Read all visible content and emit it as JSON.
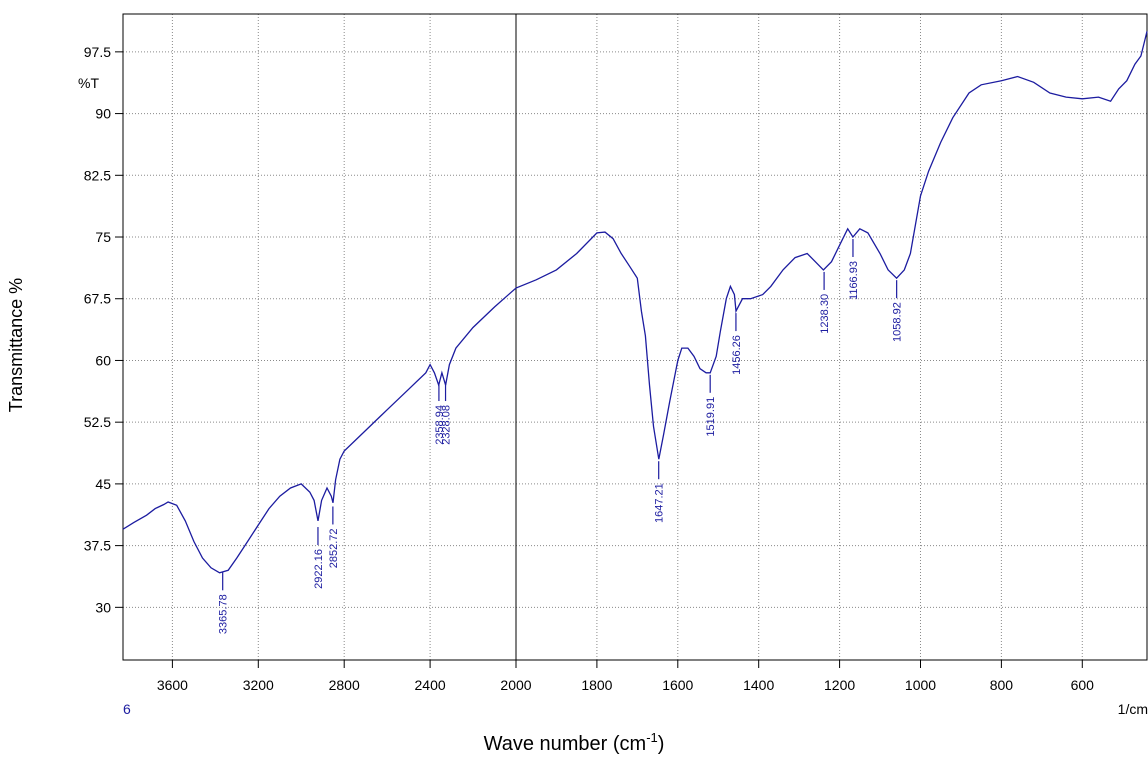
{
  "chart_data": {
    "type": "line",
    "ylabel": "Transmittance %",
    "xlabel": [
      "Wave number (cm",
      "-1",
      ")"
    ],
    "y_unit": "%T",
    "x_start_label": "6",
    "x_end_label": "1/cm",
    "color": "#1c1ca0",
    "label_color": "#1c1ca0",
    "grid": true,
    "xscale": "split",
    "xbreak": 2000,
    "xlim": [
      3830,
      440
    ],
    "ylim": [
      23.6,
      102.1
    ],
    "xticks": [
      3600,
      3200,
      2800,
      2400,
      2000,
      1800,
      1600,
      1400,
      1200,
      1000,
      800,
      600
    ],
    "yticks": [
      30,
      37.5,
      45,
      52.5,
      60,
      67.5,
      75,
      82.5,
      90,
      97.5
    ],
    "x": [
      3830,
      3780,
      3720,
      3680,
      3640,
      3620,
      3580,
      3540,
      3500,
      3460,
      3420,
      3380,
      3365.78,
      3340,
      3300,
      3250,
      3200,
      3150,
      3100,
      3050,
      3000,
      2960,
      2940,
      2922,
      2905,
      2880,
      2860,
      2852,
      2840,
      2820,
      2800,
      2700,
      2600,
      2500,
      2420,
      2400,
      2380,
      2360,
      2345,
      2328,
      2310,
      2280,
      2200,
      2100,
      2000,
      1950,
      1900,
      1850,
      1800,
      1780,
      1760,
      1740,
      1720,
      1700,
      1690,
      1680,
      1670,
      1660,
      1647,
      1635,
      1620,
      1600,
      1590,
      1575,
      1560,
      1545,
      1530,
      1520,
      1505,
      1495,
      1480,
      1470,
      1460,
      1456,
      1440,
      1420,
      1390,
      1370,
      1340,
      1310,
      1280,
      1260,
      1240,
      1220,
      1200,
      1180,
      1167,
      1150,
      1130,
      1100,
      1080,
      1059,
      1040,
      1025,
      1000,
      980,
      950,
      920,
      880,
      850,
      800,
      760,
      720,
      680,
      640,
      600,
      560,
      530,
      510,
      490,
      470,
      455,
      445,
      440
    ],
    "values": [
      39.5,
      40.3,
      41.2,
      42.0,
      42.5,
      42.8,
      42.4,
      40.5,
      38.0,
      36.0,
      34.8,
      34.2,
      34.3,
      34.5,
      36.0,
      38.0,
      40.0,
      42.0,
      43.5,
      44.5,
      45.0,
      44.0,
      43.0,
      40.5,
      43.0,
      44.5,
      43.5,
      42.7,
      45.5,
      48.0,
      49.0,
      51.5,
      54.0,
      56.5,
      58.5,
      59.5,
      58.5,
      57.0,
      58.5,
      57.0,
      59.5,
      61.5,
      64.0,
      66.5,
      68.8,
      69.8,
      71.0,
      73.0,
      75.5,
      75.6,
      74.8,
      73.0,
      71.5,
      70.0,
      66.0,
      63.0,
      57.0,
      52.0,
      48.0,
      51.0,
      55.0,
      60.0,
      61.5,
      61.5,
      60.5,
      59.0,
      58.5,
      58.5,
      60.5,
      63.5,
      67.5,
      69.0,
      68.0,
      66.0,
      67.5,
      67.5,
      68.0,
      69.0,
      71.0,
      72.5,
      73.0,
      72.0,
      71.0,
      72.0,
      74.0,
      76.0,
      75.0,
      76.0,
      75.5,
      73.0,
      71.0,
      70.0,
      71.0,
      73.0,
      80.0,
      83.0,
      86.5,
      89.5,
      92.5,
      93.5,
      94.0,
      94.5,
      93.8,
      92.5,
      92.0,
      91.8,
      92.0,
      91.5,
      93.0,
      94.0,
      96.0,
      97.0,
      99.0,
      100.0
    ],
    "peaks": [
      {
        "x": 3365.78,
        "y": 34.5,
        "label": "3365.78"
      },
      {
        "x": 2922.16,
        "y": 40.0,
        "label": "2922.16"
      },
      {
        "x": 2852.72,
        "y": 42.5,
        "label": "2852.72"
      },
      {
        "x": 2358.94,
        "y": 57.5,
        "label": "2358.94"
      },
      {
        "x": 2328.08,
        "y": 57.5,
        "label": "2328.08"
      },
      {
        "x": 1647.21,
        "y": 48.0,
        "label": "1647.21"
      },
      {
        "x": 1519.91,
        "y": 58.5,
        "label": "1519.91"
      },
      {
        "x": 1456.26,
        "y": 66.0,
        "label": "1456.26"
      },
      {
        "x": 1238.3,
        "y": 71.0,
        "label": "1238.30"
      },
      {
        "x": 1166.93,
        "y": 75.0,
        "label": "1166.93"
      },
      {
        "x": 1058.92,
        "y": 70.0,
        "label": "1058.92"
      }
    ]
  }
}
